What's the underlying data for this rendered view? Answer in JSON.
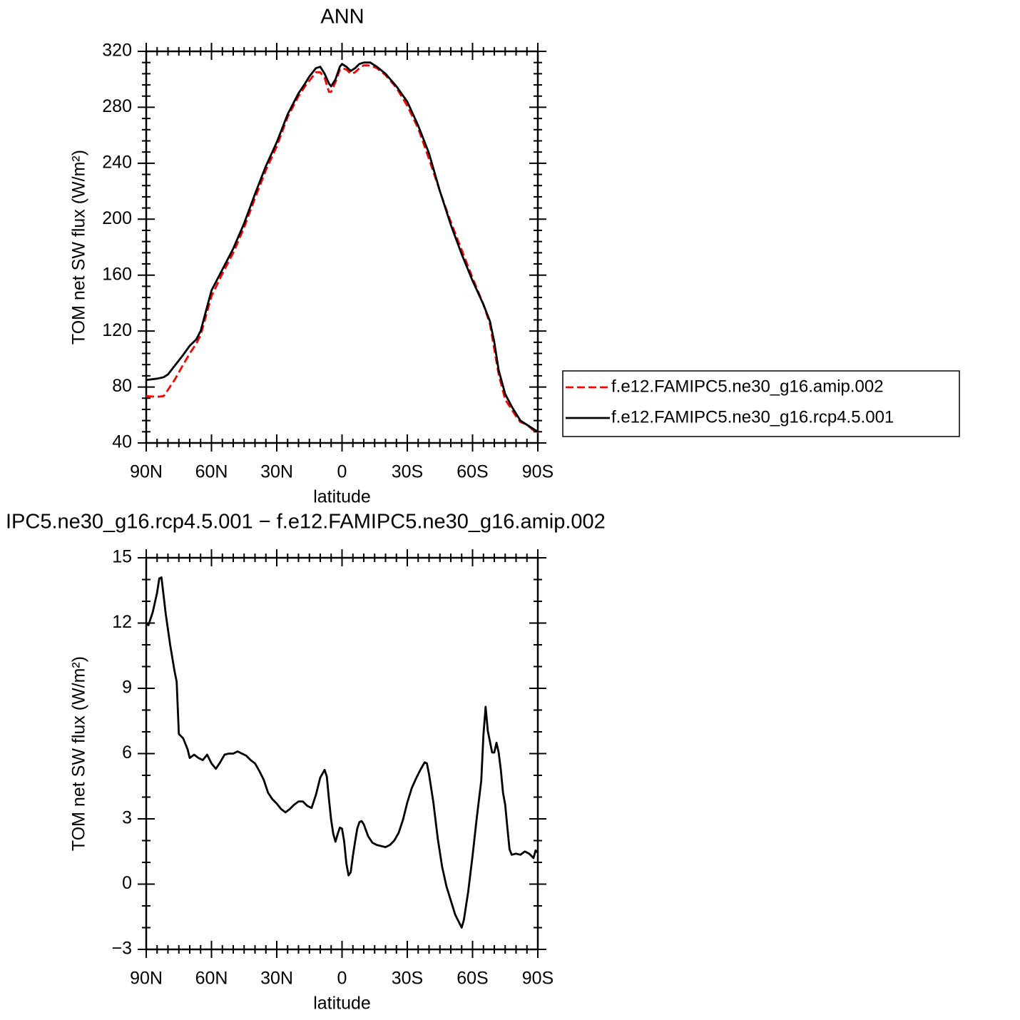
{
  "chart_data": [
    {
      "type": "line",
      "title": "ANN",
      "xlabel": "latitude",
      "ylabel": "TOM net SW flux (W/m²)",
      "x": [
        90,
        85,
        82,
        80,
        77,
        73,
        70,
        67,
        65,
        60,
        55,
        50,
        45,
        40,
        35,
        30,
        25,
        20,
        17,
        15,
        12,
        10,
        8,
        6,
        5,
        3,
        1,
        0,
        -2,
        -4,
        -6,
        -8,
        -10,
        -13,
        -16,
        -20,
        -25,
        -30,
        -35,
        -40,
        -45,
        -50,
        -55,
        -60,
        -65,
        -68,
        -70,
        -72,
        -75,
        -78,
        -80,
        -82,
        -85,
        -88,
        -90
      ],
      "xlim": [
        90,
        -90
      ],
      "xticks": [
        {
          "value": 90,
          "label": "90N"
        },
        {
          "value": 60,
          "label": "60N"
        },
        {
          "value": 30,
          "label": "30N"
        },
        0,
        {
          "value": -30,
          "label": "30S"
        },
        {
          "value": -60,
          "label": "60S"
        },
        {
          "value": -90,
          "label": "90S"
        }
      ],
      "ylim": [
        40,
        320
      ],
      "yticks": [
        40,
        80,
        120,
        160,
        200,
        240,
        280,
        320
      ],
      "legend": "right",
      "series": [
        {
          "name": "f.e12.FAMIPC5.ne30_g16.amip.002",
          "color": "#ff0000",
          "linestyle": "dashed",
          "values": [
            73.5,
            73,
            73.5,
            78,
            85,
            96,
            104,
            111,
            117,
            145,
            161,
            176,
            194,
            215,
            235,
            252,
            273,
            288,
            295,
            299,
            305,
            305,
            301,
            291,
            291,
            298,
            307,
            308,
            307,
            304,
            305,
            308,
            310,
            310,
            308,
            303,
            294,
            281,
            265,
            243,
            220,
            198,
            178,
            158,
            139,
            125,
            107,
            89,
            71,
            64,
            59,
            55,
            53,
            49,
            47
          ]
        },
        {
          "name": "f.e12.FAMIPC5.ne30_g16.rcp4.5.001",
          "color": "#000000",
          "linestyle": "solid",
          "values": [
            85,
            86,
            87,
            89,
            95,
            103,
            109.5,
            114,
            120,
            149,
            164,
            179,
            197,
            218,
            238,
            255,
            275,
            290,
            297,
            302,
            308,
            309,
            304,
            297,
            295,
            300,
            309,
            311,
            309,
            306,
            308,
            311,
            312,
            312,
            309,
            304,
            295,
            284,
            267,
            247,
            220,
            196,
            175,
            156,
            139,
            127,
            112,
            92,
            75,
            66,
            61,
            56,
            53,
            50,
            48
          ]
        }
      ]
    },
    {
      "type": "line",
      "title": "IPC5.ne30_g16.rcp4.5.001 − f.e12.FAMIPC5.ne30_g16.amip.002",
      "xlabel": "latitude",
      "ylabel": "TOM net SW flux (W/m²)",
      "x": [
        90,
        89,
        87,
        85,
        84,
        83,
        81,
        79,
        77,
        76,
        75,
        73,
        71,
        70,
        68,
        66,
        64,
        62,
        60,
        58,
        56,
        54,
        52,
        50,
        48,
        46,
        44,
        42,
        40,
        38,
        36,
        34,
        32,
        30,
        28,
        26,
        24,
        22,
        20,
        18,
        16,
        14,
        12,
        10,
        8,
        7,
        6,
        5,
        4,
        3,
        2,
        1,
        0,
        -1,
        -2,
        -3,
        -4,
        -5,
        -6,
        -7,
        -8,
        -9,
        -10,
        -12,
        -14,
        -16,
        -18,
        -20,
        -22,
        -24,
        -26,
        -28,
        -30,
        -32,
        -34,
        -36,
        -38,
        -39,
        -40,
        -42,
        -44,
        -46,
        -48,
        -50,
        -52,
        -54,
        -55,
        -56,
        -58,
        -60,
        -62,
        -64,
        -65,
        -66,
        -67,
        -68,
        -69,
        -70,
        -71,
        -72,
        -73,
        -74,
        -75,
        -76,
        -77,
        -78,
        -80,
        -82,
        -84,
        -86,
        -88,
        -89,
        -90
      ],
      "xlim": [
        90,
        -90
      ],
      "xticks": [
        {
          "value": 90,
          "label": "90N"
        },
        {
          "value": 60,
          "label": "60N"
        },
        {
          "value": 30,
          "label": "30N"
        },
        0,
        {
          "value": -30,
          "label": "30S"
        },
        {
          "value": -60,
          "label": "60S"
        },
        {
          "value": -90,
          "label": "90S"
        }
      ],
      "ylim": [
        -3,
        15
      ],
      "yticks": [
        {
          "value": -3,
          "label": "−3"
        },
        0,
        3,
        6,
        9,
        12,
        15
      ],
      "series": [
        {
          "color": "#000000",
          "linestyle": "solid",
          "values": [
            12.0,
            11.9,
            12.5,
            13.4,
            14.05,
            14.1,
            12.4,
            11.0,
            9.8,
            9.3,
            6.9,
            6.7,
            6.2,
            5.8,
            5.95,
            5.8,
            5.7,
            5.95,
            5.55,
            5.3,
            5.6,
            5.95,
            6.0,
            6.0,
            6.1,
            6.0,
            5.9,
            5.7,
            5.55,
            5.2,
            4.8,
            4.2,
            3.9,
            3.7,
            3.45,
            3.3,
            3.45,
            3.65,
            3.8,
            3.8,
            3.6,
            3.5,
            4.1,
            4.9,
            5.25,
            4.95,
            3.9,
            2.95,
            2.3,
            1.95,
            2.3,
            2.6,
            2.55,
            1.95,
            0.95,
            0.4,
            0.55,
            1.3,
            1.95,
            2.55,
            2.85,
            2.9,
            2.75,
            2.2,
            1.9,
            1.8,
            1.75,
            1.7,
            1.8,
            2.0,
            2.35,
            2.95,
            3.75,
            4.4,
            4.85,
            5.25,
            5.6,
            5.55,
            5.05,
            3.75,
            2.1,
            0.8,
            -0.1,
            -0.75,
            -1.4,
            -1.8,
            -2.0,
            -1.65,
            -0.35,
            1.3,
            3.1,
            4.75,
            6.85,
            8.15,
            7.05,
            6.55,
            6.05,
            6.05,
            6.5,
            6.05,
            5.25,
            4.2,
            3.65,
            2.6,
            1.6,
            1.35,
            1.4,
            1.35,
            1.5,
            1.4,
            1.2,
            1.55,
            1.45
          ]
        }
      ]
    }
  ]
}
